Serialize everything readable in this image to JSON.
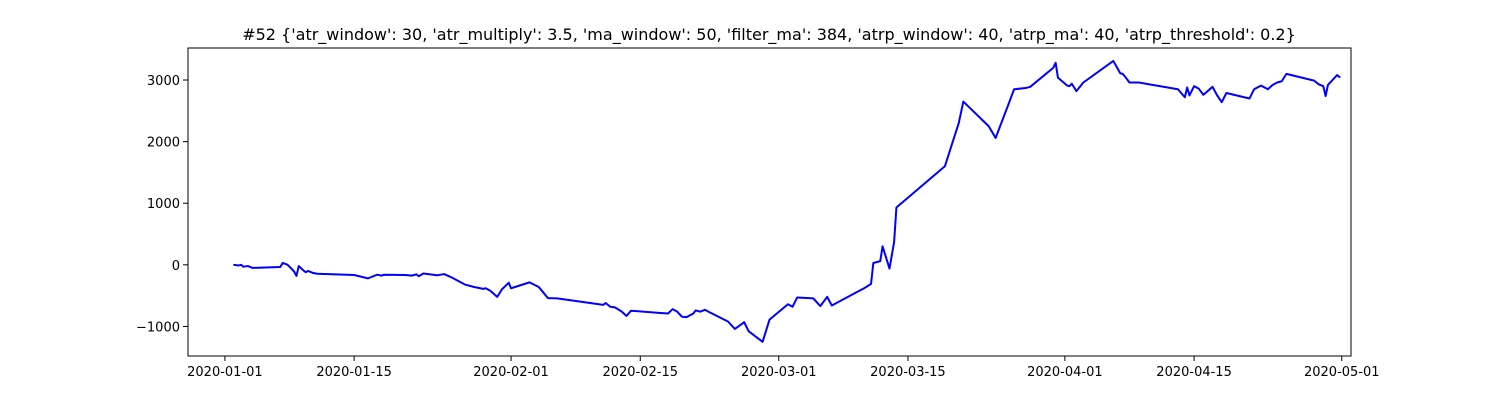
{
  "chart_data": {
    "type": "line",
    "title": "#52 {'atr_window': 30, 'atr_multiply': 3.5, 'ma_window': 50, 'filter_ma': 384, 'atrp_window': 40, 'atrp_ma': 40, 'atrp_threshold': 0.2}",
    "xlabel": "",
    "ylabel": "",
    "xlim": [
      "2019-12-28",
      "2020-05-02"
    ],
    "ylim": [
      -1480,
      3520
    ],
    "grid": false,
    "x_ticks": [
      "2020-01-01",
      "2020-01-15",
      "2020-02-01",
      "2020-02-15",
      "2020-03-01",
      "2020-03-15",
      "2020-04-01",
      "2020-04-15",
      "2020-05-01"
    ],
    "y_ticks": [
      -1000,
      0,
      1000,
      2000,
      3000
    ],
    "y_tick_labels": [
      "−1000",
      "0",
      "1000",
      "2000",
      "3000"
    ],
    "series": [
      {
        "color": "#0000ff",
        "points": [
          [
            "2020-01-02",
            0
          ],
          [
            "2020-01-02T12:00",
            -10
          ],
          [
            "2020-01-02T18:00",
            0
          ],
          [
            "2020-01-03",
            -30
          ],
          [
            "2020-01-03T12:00",
            -20
          ],
          [
            "2020-01-04",
            -50
          ],
          [
            "2020-01-07",
            -35
          ],
          [
            "2020-01-07T06:00",
            30
          ],
          [
            "2020-01-07T18:00",
            5
          ],
          [
            "2020-01-08",
            -30
          ],
          [
            "2020-01-08T12:00",
            -110
          ],
          [
            "2020-01-08T18:00",
            -180
          ],
          [
            "2020-01-09",
            -20
          ],
          [
            "2020-01-09T12:00",
            -90
          ],
          [
            "2020-01-09T18:00",
            -120
          ],
          [
            "2020-01-10",
            -100
          ],
          [
            "2020-01-10T12:00",
            -130
          ],
          [
            "2020-01-11",
            -145
          ],
          [
            "2020-01-15",
            -165
          ],
          [
            "2020-01-16T12:00",
            -220
          ],
          [
            "2020-01-17T12:00",
            -160
          ],
          [
            "2020-01-18",
            -175
          ],
          [
            "2020-01-18T06:00",
            -160
          ],
          [
            "2020-01-20T12:00",
            -165
          ],
          [
            "2020-01-21T06:00",
            -175
          ],
          [
            "2020-01-21T18:00",
            -155
          ],
          [
            "2020-01-22",
            -185
          ],
          [
            "2020-01-22T12:00",
            -140
          ],
          [
            "2020-01-24",
            -170
          ],
          [
            "2020-01-24T18:00",
            -150
          ],
          [
            "2020-01-25T12:00",
            -200
          ],
          [
            "2020-01-27",
            -320
          ],
          [
            "2020-01-28",
            -360
          ],
          [
            "2020-01-29",
            -390
          ],
          [
            "2020-01-29T06:00",
            -380
          ],
          [
            "2020-01-29T18:00",
            -420
          ],
          [
            "2020-01-30T12:00",
            -520
          ],
          [
            "2020-01-31",
            -400
          ],
          [
            "2020-01-31T18:00",
            -290
          ],
          [
            "2020-02-01",
            -380
          ],
          [
            "2020-02-03",
            -285
          ],
          [
            "2020-02-04",
            -360
          ],
          [
            "2020-02-04T12:00",
            -450
          ],
          [
            "2020-02-05",
            -540
          ],
          [
            "2020-02-06",
            -545
          ],
          [
            "2020-02-11",
            -650
          ],
          [
            "2020-02-11T06:00",
            -620
          ],
          [
            "2020-02-11T18:00",
            -680
          ],
          [
            "2020-02-12T06:00",
            -690
          ],
          [
            "2020-02-13",
            -760
          ],
          [
            "2020-02-13T12:00",
            -830
          ],
          [
            "2020-02-14",
            -745
          ],
          [
            "2020-02-17",
            -780
          ],
          [
            "2020-02-18",
            -790
          ],
          [
            "2020-02-18T12:00",
            -720
          ],
          [
            "2020-02-19",
            -760
          ],
          [
            "2020-02-19T12:00",
            -840
          ],
          [
            "2020-02-20",
            -850
          ],
          [
            "2020-02-20T18:00",
            -790
          ],
          [
            "2020-02-21",
            -740
          ],
          [
            "2020-02-21T12:00",
            -760
          ],
          [
            "2020-02-22",
            -730
          ],
          [
            "2020-02-22T12:00",
            -770
          ],
          [
            "2020-02-24T12:00",
            -920
          ],
          [
            "2020-02-25T06:00",
            -1040
          ],
          [
            "2020-02-26",
            -960
          ],
          [
            "2020-02-26T06:00",
            -930
          ],
          [
            "2020-02-26T18:00",
            -1080
          ],
          [
            "2020-02-28T06:00",
            -1250
          ],
          [
            "2020-02-29",
            -890
          ],
          [
            "2020-03-02",
            -640
          ],
          [
            "2020-03-02T12:00",
            -680
          ],
          [
            "2020-03-03",
            -530
          ],
          [
            "2020-03-04T18:00",
            -545
          ],
          [
            "2020-03-05T12:00",
            -670
          ],
          [
            "2020-03-06T06:00",
            -520
          ],
          [
            "2020-03-06T18:00",
            -660
          ],
          [
            "2020-03-09",
            -480
          ],
          [
            "2020-03-10T06:00",
            -380
          ],
          [
            "2020-03-11",
            -310
          ],
          [
            "2020-03-11T06:00",
            30
          ],
          [
            "2020-03-12",
            60
          ],
          [
            "2020-03-12T06:00",
            300
          ],
          [
            "2020-03-13",
            -60
          ],
          [
            "2020-03-13T12:00",
            370
          ],
          [
            "2020-03-13T18:00",
            930
          ],
          [
            "2020-03-19",
            1600
          ],
          [
            "2020-03-20T12:00",
            2300
          ],
          [
            "2020-03-21",
            2650
          ],
          [
            "2020-03-23T18:00",
            2250
          ],
          [
            "2020-03-24T12:00",
            2060
          ],
          [
            "2020-03-26",
            2650
          ],
          [
            "2020-03-26T12:00",
            2850
          ],
          [
            "2020-03-27T18:00",
            2870
          ],
          [
            "2020-03-28T06:00",
            2890
          ],
          [
            "2020-03-30T18:00",
            3200
          ],
          [
            "2020-03-31",
            3280
          ],
          [
            "2020-03-31T06:00",
            3040
          ],
          [
            "2020-04-01T06:00",
            2910
          ],
          [
            "2020-04-01T12:00",
            2900
          ],
          [
            "2020-04-01T18:00",
            2940
          ],
          [
            "2020-04-02T06:00",
            2820
          ],
          [
            "2020-04-03",
            2960
          ],
          [
            "2020-04-06T06:00",
            3310
          ],
          [
            "2020-04-07",
            3110
          ],
          [
            "2020-04-07T06:00",
            3100
          ],
          [
            "2020-04-07T12:00",
            3060
          ],
          [
            "2020-04-08",
            2960
          ],
          [
            "2020-04-09",
            2960
          ],
          [
            "2020-04-13T06:00",
            2850
          ],
          [
            "2020-04-14",
            2720
          ],
          [
            "2020-04-14T06:00",
            2880
          ],
          [
            "2020-04-14T12:00",
            2750
          ],
          [
            "2020-04-15",
            2900
          ],
          [
            "2020-04-15T12:00",
            2860
          ],
          [
            "2020-04-16",
            2760
          ],
          [
            "2020-04-17",
            2890
          ],
          [
            "2020-04-17T12:00",
            2750
          ],
          [
            "2020-04-18",
            2640
          ],
          [
            "2020-04-18T12:00",
            2790
          ],
          [
            "2020-04-21",
            2700
          ],
          [
            "2020-04-21T12:00",
            2850
          ],
          [
            "2020-04-22T06:00",
            2910
          ],
          [
            "2020-04-23",
            2850
          ],
          [
            "2020-04-23T12:00",
            2920
          ],
          [
            "2020-04-24",
            2960
          ],
          [
            "2020-04-24T12:00",
            2980
          ],
          [
            "2020-04-25",
            3100
          ],
          [
            "2020-04-28",
            2990
          ],
          [
            "2020-04-28T12:00",
            2930
          ],
          [
            "2020-04-29",
            2900
          ],
          [
            "2020-04-29T06:00",
            2740
          ],
          [
            "2020-04-29T12:00",
            2920
          ],
          [
            "2020-04-30T12:00",
            3080
          ],
          [
            "2020-04-30T18:00",
            3050
          ]
        ]
      }
    ]
  }
}
